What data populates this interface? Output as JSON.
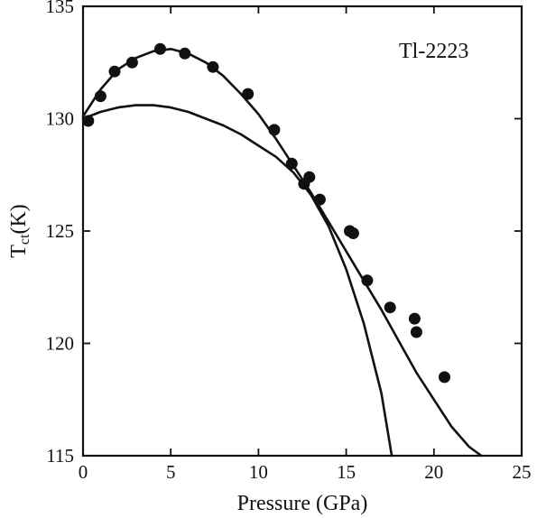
{
  "chart_data": {
    "type": "scatter",
    "title": "",
    "xlabel": "Pressure (GPa)",
    "ylabel": {
      "base": "T",
      "subscript": "ct",
      "suffix": "(K)"
    },
    "annotation": "Tl-2223",
    "xlim": [
      0,
      25
    ],
    "ylim": [
      115,
      135
    ],
    "xticks": [
      0,
      5,
      10,
      15,
      20,
      25
    ],
    "yticks": [
      115,
      120,
      125,
      130,
      135
    ],
    "grid": false,
    "legend": "none",
    "colors": {
      "ink": "#111111",
      "background": "#ffffff"
    },
    "series": [
      {
        "kind": "points",
        "x": [
          0.3,
          1.0,
          1.8,
          2.8,
          4.4,
          5.8,
          7.4,
          9.4,
          10.9,
          11.9,
          12.6,
          12.9,
          13.5,
          15.2,
          15.4,
          16.2,
          17.5,
          18.9,
          19.0,
          20.6
        ],
        "y": [
          129.9,
          131.0,
          132.1,
          132.5,
          133.1,
          132.9,
          132.3,
          131.1,
          129.5,
          128.0,
          127.1,
          127.4,
          126.4,
          125.0,
          124.9,
          122.8,
          121.6,
          121.1,
          120.5,
          118.5
        ]
      },
      {
        "kind": "curve",
        "x": [
          0,
          1,
          2,
          3,
          4,
          5,
          6,
          7,
          8,
          9,
          10,
          11,
          12,
          13,
          14,
          15,
          16,
          17,
          18,
          19,
          20,
          21,
          22,
          22.7
        ],
        "y": [
          130.1,
          131.3,
          132.2,
          132.7,
          133.0,
          133.1,
          132.9,
          132.5,
          131.9,
          131.1,
          130.2,
          129.1,
          127.9,
          126.7,
          125.4,
          124.1,
          122.8,
          121.5,
          120.1,
          118.7,
          117.5,
          116.3,
          115.4,
          115.0
        ]
      },
      {
        "kind": "curve",
        "x": [
          0,
          1,
          2,
          3,
          4,
          5,
          6,
          7,
          8,
          9,
          10,
          11,
          12,
          13,
          14,
          15,
          16,
          17,
          17.6
        ],
        "y": [
          130.0,
          130.3,
          130.5,
          130.6,
          130.6,
          130.5,
          130.3,
          130.0,
          129.7,
          129.3,
          128.8,
          128.3,
          127.6,
          126.6,
          125.2,
          123.3,
          120.9,
          117.8,
          115.0
        ]
      }
    ]
  }
}
